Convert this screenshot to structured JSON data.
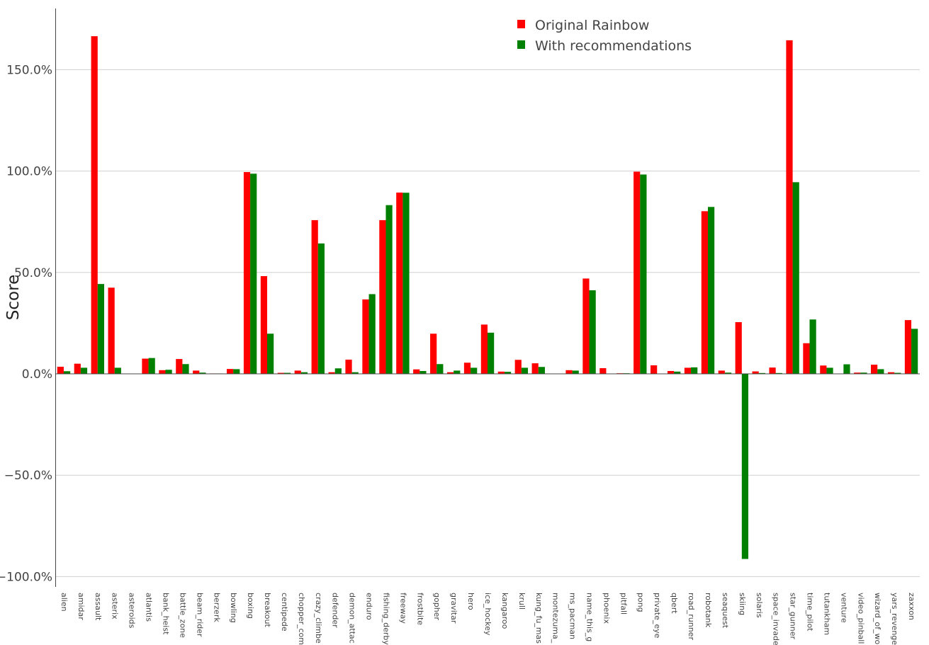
{
  "chart_data": {
    "type": "bar",
    "title": "",
    "xlabel": "",
    "ylabel": "Score",
    "ylim": [
      -105,
      180
    ],
    "yticks": [
      -100,
      -50,
      0,
      50,
      100,
      150
    ],
    "ytick_labels": [
      "−100.0%",
      "−50.0%",
      "0.0%",
      "50.0%",
      "100.0%",
      "150.0%"
    ],
    "grid": true,
    "legend_position": "top-right",
    "categories": [
      "alien",
      "amidar",
      "assault",
      "asterix",
      "asteroids",
      "atlantis",
      "bank_heist",
      "battle_zone",
      "beam_rider",
      "berzerk",
      "bowling",
      "boxing",
      "breakout",
      "centipede",
      "chopper_com",
      "crazy_climbe",
      "defender",
      "demon_attac",
      "enduro",
      "fishing_derby",
      "freeway",
      "frostbite",
      "gopher",
      "gravitar",
      "hero",
      "ice_hockey",
      "kangaroo",
      "krull",
      "kung_fu_mas",
      "montezuma_",
      "ms_pacman",
      "name_this_g",
      "phoenix",
      "pitfall",
      "pong",
      "private_eye",
      "qbert",
      "road_runner",
      "robotank",
      "seaquest",
      "skiing",
      "solaris",
      "space_invade",
      "star_gunner",
      "time_pilot",
      "tutankham",
      "venture",
      "video_pinball",
      "wizard_of_wo",
      "yars_revenge",
      "zaxxon"
    ],
    "series": [
      {
        "name": "Original Rainbow",
        "color": "#ff0000",
        "values": [
          3.5,
          5.0,
          166.5,
          42.5,
          0.0,
          7.5,
          1.8,
          7.3,
          1.6,
          0.2,
          2.4,
          99.5,
          48.2,
          0.5,
          1.6,
          75.8,
          0.8,
          7.0,
          36.7,
          75.8,
          89.4,
          2.2,
          19.8,
          0.8,
          5.5,
          24.3,
          1.1,
          6.9,
          5.2,
          0.0,
          1.8,
          47.0,
          2.8,
          0.3,
          99.7,
          4.2,
          1.4,
          3.0,
          80.2,
          1.6,
          25.5,
          1.2,
          3.1,
          164.5,
          15.1,
          4.1,
          0.0,
          0.6,
          4.5,
          0.8,
          26.5
        ]
      },
      {
        "name": "With recommendations",
        "color": "#008000",
        "values": [
          1.3,
          3.0,
          44.3,
          3.0,
          0.0,
          7.8,
          2.0,
          4.8,
          0.6,
          0.2,
          2.3,
          98.7,
          19.8,
          0.5,
          0.8,
          64.3,
          2.7,
          0.8,
          39.3,
          83.2,
          89.3,
          1.4,
          4.8,
          1.6,
          3.0,
          20.3,
          1.0,
          3.0,
          3.4,
          0.0,
          1.6,
          41.2,
          0.0,
          0.3,
          98.3,
          0.0,
          1.1,
          3.2,
          82.3,
          0.6,
          -91.3,
          0.4,
          0.4,
          94.5,
          26.8,
          3.0,
          4.7,
          0.6,
          2.3,
          0.5,
          22.2
        ]
      }
    ]
  }
}
